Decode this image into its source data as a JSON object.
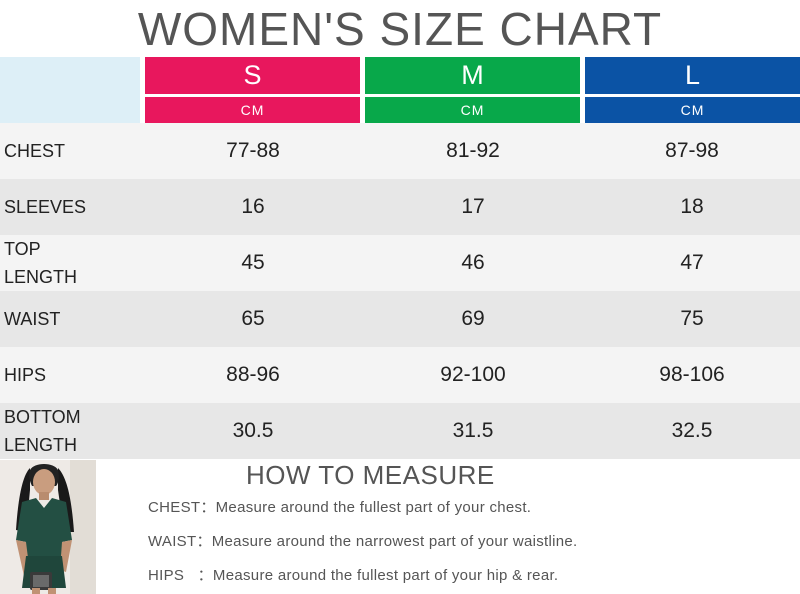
{
  "title": "WOMEN'S SIZE CHART",
  "colors": {
    "S": "#e8175d",
    "M": "#08a84a",
    "L": "#0b53a5",
    "corner": "#ddeff7",
    "row_light": "#f4f4f4",
    "row_dark": "#e7e7e7"
  },
  "sizes": [
    {
      "label": "S",
      "unit": "CM"
    },
    {
      "label": "M",
      "unit": "CM"
    },
    {
      "label": "L",
      "unit": "CM"
    }
  ],
  "rows": [
    {
      "label": "CHEST",
      "values": [
        "77-88",
        "81-92",
        "87-98"
      ]
    },
    {
      "label": "SLEEVES",
      "values": [
        "16",
        "17",
        "18"
      ]
    },
    {
      "label": "TOP\nLENGTH",
      "values": [
        "45",
        "46",
        "47"
      ]
    },
    {
      "label": "WAIST",
      "values": [
        "65",
        "69",
        "75"
      ]
    },
    {
      "label": "HIPS",
      "values": [
        "88-96",
        "92-100",
        "98-106"
      ]
    },
    {
      "label": "BOTTOM\nLENGTH",
      "values": [
        "30.5",
        "31.5",
        "32.5"
      ]
    }
  ],
  "how_to_measure": {
    "heading": "HOW TO MEASURE",
    "items": [
      {
        "label": "CHEST：",
        "text": "Measure around the fullest part of your chest."
      },
      {
        "label": "WAIST：",
        "text": "Measure around the narrowest part of your waistline."
      },
      {
        "label": "HIPS   ：",
        "text": "Measure around the fullest part of your hip & rear."
      }
    ]
  }
}
